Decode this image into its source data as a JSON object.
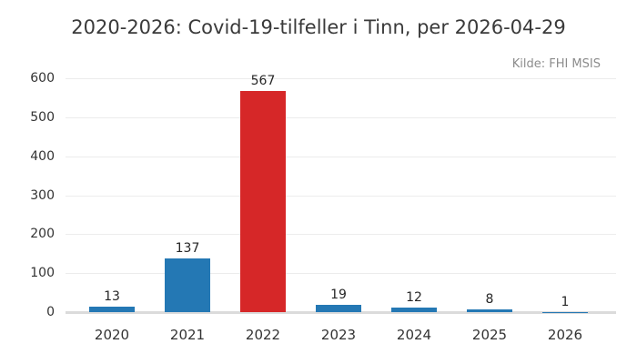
{
  "chart_data": {
    "type": "bar",
    "title": "2020-2026: Covid-19-tilfeller i Tinn, per 2026-04-29",
    "source_note": "Kilde: FHI MSIS",
    "categories": [
      "2020",
      "2021",
      "2022",
      "2023",
      "2024",
      "2025",
      "2026"
    ],
    "values": [
      13,
      137,
      567,
      19,
      12,
      8,
      1
    ],
    "value_labels": [
      "13",
      "137",
      "567",
      "19",
      "12",
      "8",
      "1"
    ],
    "bar_colors": [
      "#2478b4",
      "#2478b4",
      "#d62728",
      "#2478b4",
      "#2478b4",
      "#2478b4",
      "#2478b4"
    ],
    "highlighted_category": "2022",
    "xlabel": "",
    "ylabel": "",
    "ylim": [
      0,
      600
    ],
    "yticks": [
      0,
      100,
      200,
      300,
      400,
      500,
      600
    ],
    "grid": "horizontal",
    "legend": false,
    "colors": {
      "bar_default": "#2478b4",
      "bar_highlight": "#d62728",
      "gridline": "#ececec",
      "baseline": "#dbdbdb",
      "title_text": "#3a3a3a",
      "tick_text": "#333333",
      "value_text": "#262626",
      "source_text": "#8c8c8c",
      "background": "#ffffff"
    }
  }
}
